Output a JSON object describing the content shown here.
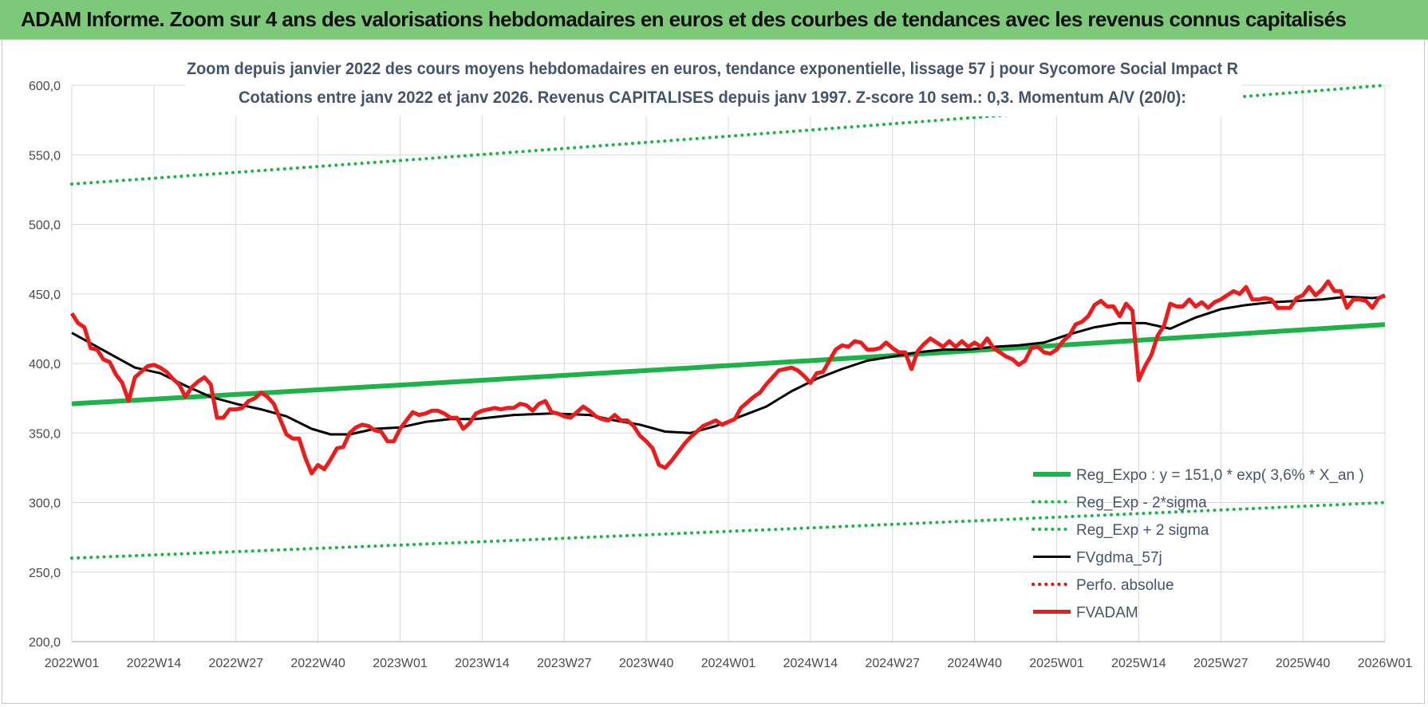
{
  "header": {
    "banner_title": "ADAM Informe. Zoom sur 4 ans des valorisations hebdomadaires en euros et des courbes de tendances avec les revenus connus capitalisés"
  },
  "chart_data": {
    "type": "line",
    "title_lines": [
      "Zoom depuis janvier 2022 des cours moyens hebdomadaires en euros, tendance exponentielle, lissage 57 j pour Sycomore Social Impact R",
      "Cotations entre janv 2022 et janv 2026. Revenus CAPITALISES depuis janv 1997. Z-score 10 sem.: 0,3. Momentum A/V (20/0):"
    ],
    "ylim": [
      200,
      600
    ],
    "yticks": [
      "200,0",
      "250,0",
      "300,0",
      "350,0",
      "400,0",
      "450,0",
      "500,0",
      "550,0",
      "600,0"
    ],
    "xlim": [
      0,
      208
    ],
    "xticks": [
      {
        "week": 0,
        "label": "2022W01"
      },
      {
        "week": 13,
        "label": "2022W14"
      },
      {
        "week": 26,
        "label": "2022W27"
      },
      {
        "week": 39,
        "label": "2022W40"
      },
      {
        "week": 52,
        "label": "2023W01"
      },
      {
        "week": 65,
        "label": "2023W14"
      },
      {
        "week": 78,
        "label": "2023W27"
      },
      {
        "week": 91,
        "label": "2023W40"
      },
      {
        "week": 104,
        "label": "2024W01"
      },
      {
        "week": 117,
        "label": "2024W14"
      },
      {
        "week": 130,
        "label": "2024W27"
      },
      {
        "week": 143,
        "label": "2024W40"
      },
      {
        "week": 156,
        "label": "2025W01"
      },
      {
        "week": 169,
        "label": "2025W14"
      },
      {
        "week": 182,
        "label": "2025W27"
      },
      {
        "week": 195,
        "label": "2025W40"
      },
      {
        "week": 208,
        "label": "2026W01"
      }
    ],
    "grid": true,
    "legend_position": "bottom-right",
    "series": [
      {
        "name": "Reg_Expo : y = 151,0 * exp( 3,6% *  X_an )",
        "style": "solid-thick",
        "color": "#1db34a",
        "x": [
          0,
          208
        ],
        "values": [
          371,
          428
        ],
        "exponential": true
      },
      {
        "name": "Reg_Exp - 2*sigma",
        "style": "dotted",
        "color": "#1db34a",
        "x": [
          0,
          208
        ],
        "values": [
          260,
          300
        ],
        "exponential": true
      },
      {
        "name": "Reg_Exp + 2 sigma",
        "style": "dotted",
        "color": "#1db34a",
        "x": [
          0,
          208
        ],
        "values": [
          529,
          600
        ],
        "exponential": true
      },
      {
        "name": "FVgdma_57j",
        "style": "solid",
        "color": "#000000",
        "x": [
          0,
          6,
          10,
          14,
          18,
          22,
          26,
          30,
          34,
          38,
          41,
          44,
          48,
          52,
          56,
          60,
          64,
          70,
          76,
          82,
          86,
          90,
          94,
          98,
          102,
          106,
          110,
          114,
          118,
          122,
          126,
          130,
          134,
          138,
          142,
          146,
          150,
          154,
          158,
          162,
          166,
          170,
          174,
          178,
          182,
          186,
          190,
          194,
          198,
          202,
          206,
          208
        ],
        "values": [
          422,
          407,
          397,
          393,
          384,
          376,
          371,
          367,
          362,
          353,
          349,
          349,
          353,
          354,
          358,
          360,
          360,
          363,
          364,
          363,
          359,
          356,
          351,
          350,
          355,
          362,
          369,
          380,
          389,
          396,
          402,
          405,
          408,
          410,
          410,
          412,
          413,
          415,
          421,
          426,
          429,
          429,
          425,
          433,
          439,
          442,
          444,
          445,
          446,
          448,
          447,
          448
        ]
      },
      {
        "name": "Perfo. absolue",
        "style": "dotted",
        "color": "#e01010",
        "x": [],
        "values": []
      },
      {
        "name": "FVADAM",
        "style": "solid-thick",
        "color": "#ea1c1c",
        "x": [
          0,
          1,
          2,
          3,
          4,
          5,
          6,
          7,
          8,
          9,
          10,
          11,
          12,
          13,
          14,
          15,
          16,
          17,
          18,
          19,
          20,
          21,
          22,
          23,
          24,
          25,
          26,
          27,
          28,
          29,
          30,
          31,
          32,
          33,
          34,
          35,
          36,
          37,
          38,
          39,
          40,
          41,
          42,
          43,
          44,
          45,
          46,
          47,
          48,
          49,
          50,
          51,
          52,
          53,
          54,
          55,
          56,
          57,
          58,
          59,
          60,
          61,
          62,
          63,
          64,
          65,
          66,
          67,
          68,
          69,
          70,
          71,
          72,
          73,
          74,
          75,
          76,
          77,
          78,
          79,
          80,
          81,
          82,
          83,
          84,
          85,
          86,
          87,
          88,
          89,
          90,
          91,
          92,
          93,
          94,
          95,
          96,
          97,
          98,
          99,
          100,
          101,
          102,
          103,
          104,
          105,
          106,
          107,
          108,
          109,
          110,
          111,
          112,
          113,
          114,
          115,
          116,
          117,
          118,
          119,
          120,
          121,
          122,
          123,
          124,
          125,
          126,
          127,
          128,
          129,
          130,
          131,
          132,
          133,
          134,
          135,
          136,
          137,
          138,
          139,
          140,
          141,
          142,
          143,
          144,
          145,
          146,
          147,
          148,
          149,
          150,
          151,
          152,
          153,
          154,
          155,
          156,
          157,
          158,
          159,
          160,
          161,
          162,
          163,
          164,
          165,
          166,
          167,
          168,
          169,
          170,
          171,
          172,
          173,
          174,
          175,
          176,
          177,
          178,
          179,
          180,
          181,
          182,
          183,
          184,
          185,
          186,
          187,
          188,
          189,
          190,
          191,
          192,
          193,
          194,
          195,
          196,
          197,
          198,
          199,
          200,
          201,
          202,
          203,
          204,
          205,
          206,
          207,
          208
        ],
        "values": [
          436,
          429,
          426,
          411,
          410,
          403,
          401,
          392,
          386,
          373,
          390,
          394,
          398,
          399,
          397,
          394,
          389,
          385,
          376,
          383,
          387,
          390,
          385,
          361,
          361,
          367,
          367,
          368,
          373,
          375,
          379,
          376,
          371,
          360,
          349,
          346,
          346,
          332,
          321,
          327,
          324,
          331,
          339,
          340,
          350,
          354,
          356,
          355,
          352,
          351,
          344,
          344,
          353,
          359,
          365,
          363,
          364,
          366,
          366,
          364,
          361,
          361,
          353,
          357,
          364,
          366,
          367,
          368,
          367,
          368,
          368,
          371,
          370,
          366,
          371,
          373,
          365,
          364,
          362,
          361,
          365,
          369,
          366,
          362,
          360,
          359,
          363,
          359,
          359,
          355,
          348,
          344,
          339,
          327,
          325,
          330,
          336,
          342,
          347,
          351,
          355,
          357,
          359,
          356,
          358,
          360,
          368,
          372,
          376,
          379,
          385,
          390,
          395,
          396,
          397,
          395,
          391,
          386,
          393,
          394,
          402,
          410,
          413,
          412,
          416,
          415,
          410,
          410,
          411,
          415,
          411,
          408,
          408,
          396,
          409,
          414,
          418,
          415,
          412,
          416,
          412,
          416,
          412,
          415,
          412,
          418,
          411,
          408,
          405,
          403,
          399,
          402,
          411,
          412,
          408,
          407,
          410,
          416,
          420,
          428,
          430,
          434,
          442,
          445,
          441,
          441,
          434,
          443,
          438,
          388,
          398,
          406,
          420,
          427,
          443,
          441,
          441,
          446,
          441,
          444,
          440,
          444,
          446,
          449,
          452,
          450,
          455,
          446,
          446,
          447,
          446,
          440,
          440,
          440,
          447,
          449,
          455,
          449,
          453,
          459,
          452,
          452,
          440,
          446,
          446,
          445,
          440,
          447,
          449
        ]
      }
    ]
  }
}
